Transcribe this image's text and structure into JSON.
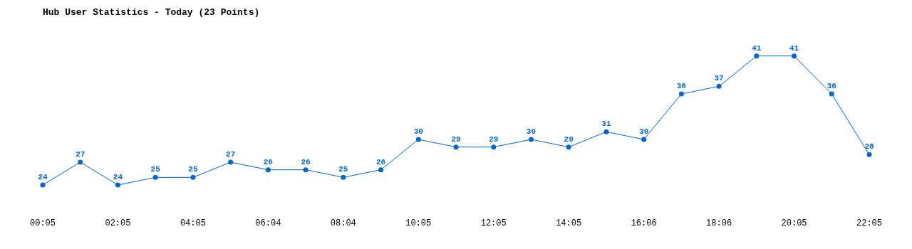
{
  "chart_data": {
    "type": "line",
    "title": "Hub User Statistics - Today (23 Points)",
    "categories": [
      "00:05",
      null,
      "02:05",
      null,
      "04:05",
      null,
      "06:04",
      null,
      "08:04",
      null,
      "10:05",
      null,
      "12:05",
      null,
      "14:05",
      null,
      "16:06",
      null,
      "18:06",
      null,
      "20:05",
      null,
      "22:05"
    ],
    "series": [
      {
        "color": "#0066cc",
        "values": [
          24,
          27,
          24,
          25,
          25,
          27,
          26,
          26,
          25,
          26,
          30,
          29,
          29,
          30,
          29,
          31,
          30,
          36,
          37,
          41,
          41,
          36,
          28
        ]
      }
    ],
    "data_labels": true,
    "marker": "circle",
    "line_style": "solid",
    "grid": false,
    "legend": false
  }
}
